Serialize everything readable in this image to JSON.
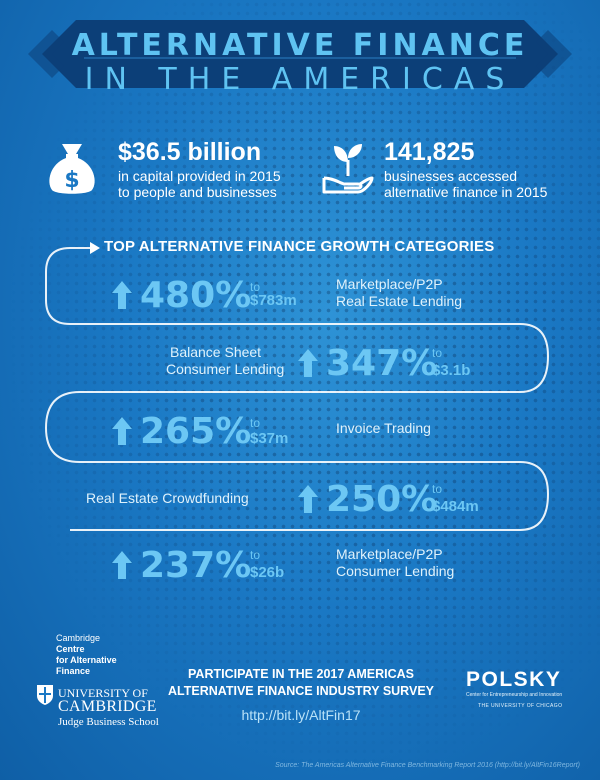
{
  "title": {
    "line1": "ALTERNATIVE FINANCE",
    "line2": "IN THE AMERICAS"
  },
  "stats": [
    {
      "icon": "money-bag-icon",
      "value": "$36.5 billion",
      "lines": [
        "in capital provided in 2015",
        "to people and businesses"
      ]
    },
    {
      "icon": "plant-hands-icon",
      "value": "141,825",
      "lines": [
        "businesses accessed",
        "alternative finance in 2015"
      ]
    }
  ],
  "growth": {
    "heading": "TOP ALTERNATIVE FINANCE GROWTH CATEGORIES",
    "to_label": "to",
    "items": [
      {
        "percent": "480%",
        "amount": "$783m",
        "category_lines": [
          "Marketplace/P2P",
          "Real Estate Lending"
        ]
      },
      {
        "percent": "347%",
        "amount": "$3.1b",
        "category_lines": [
          "Balance Sheet",
          "Consumer Lending"
        ]
      },
      {
        "percent": "265%",
        "amount": "$37m",
        "category_lines": [
          "Invoice Trading"
        ]
      },
      {
        "percent": "250%",
        "amount": "$484m",
        "category_lines": [
          "Real Estate Crowdfunding"
        ]
      },
      {
        "percent": "237%",
        "amount": "$26b",
        "category_lines": [
          "Marketplace/P2P",
          "Consumer Lending"
        ]
      }
    ]
  },
  "footer": {
    "cambridge_centre": [
      "Cambridge",
      "Centre",
      "for Alternative",
      "Finance"
    ],
    "university": [
      "UNIVERSITY OF",
      "CAMBRIDGE",
      "Judge Business School"
    ],
    "cta_lines": [
      "PARTICIPATE IN THE 2017 AMERICAS",
      "ALTERNATIVE FINANCE INDUSTRY SURVEY"
    ],
    "url": "http://bit.ly/AltFin17",
    "polsky": "POLSKY",
    "polsky_sub": "Center for Entrepreneurship and Innovation",
    "polsky_sub2": "THE UNIVERSITY OF CHICAGO",
    "source": "Source: The Americas Alternative Finance Benchmarking Report 2016 (http://bit.ly/AltFin16Report)"
  },
  "colors": {
    "accent_light_blue": "#6cc7f4",
    "title_blue": "#5fc3f2",
    "banner_dark": "#0c3f78"
  }
}
